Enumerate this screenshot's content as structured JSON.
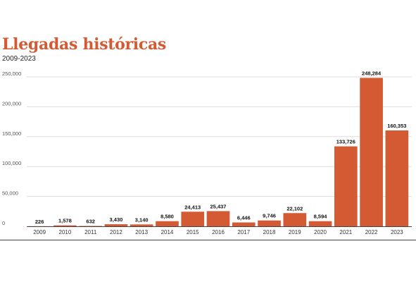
{
  "colors": {
    "accent": "#d35a32",
    "bar": "#d35a32",
    "grid": "#dddddd",
    "axis": "#444444"
  },
  "chart_data": {
    "type": "bar",
    "title": "Llegadas históricas",
    "subtitle": "2009-2023",
    "xlabel": "",
    "ylabel": "",
    "ylim": [
      0,
      250000
    ],
    "yticks": [
      0,
      50000,
      100000,
      150000,
      200000,
      250000
    ],
    "ytick_labels": [
      "0",
      "50,000",
      "100,000",
      "150,000",
      "200,000",
      "250,000"
    ],
    "grid": true,
    "legend": "none",
    "categories": [
      "2009",
      "2010",
      "2011",
      "2012",
      "2013",
      "2014",
      "2015",
      "2016",
      "2017",
      "2018",
      "2019",
      "2020",
      "2021",
      "2022",
      "2023"
    ],
    "values": [
      226,
      1578,
      632,
      3430,
      3140,
      8580,
      24413,
      25437,
      6446,
      9746,
      22102,
      8594,
      133726,
      248284,
      160353
    ],
    "value_labels": [
      "226",
      "1,578",
      "632",
      "3,430",
      "3,140",
      "8,580",
      "24,413",
      "25,437",
      "6,446",
      "9,746",
      "22,102",
      "8,594",
      "133,726",
      "248,284",
      "160,353"
    ]
  }
}
